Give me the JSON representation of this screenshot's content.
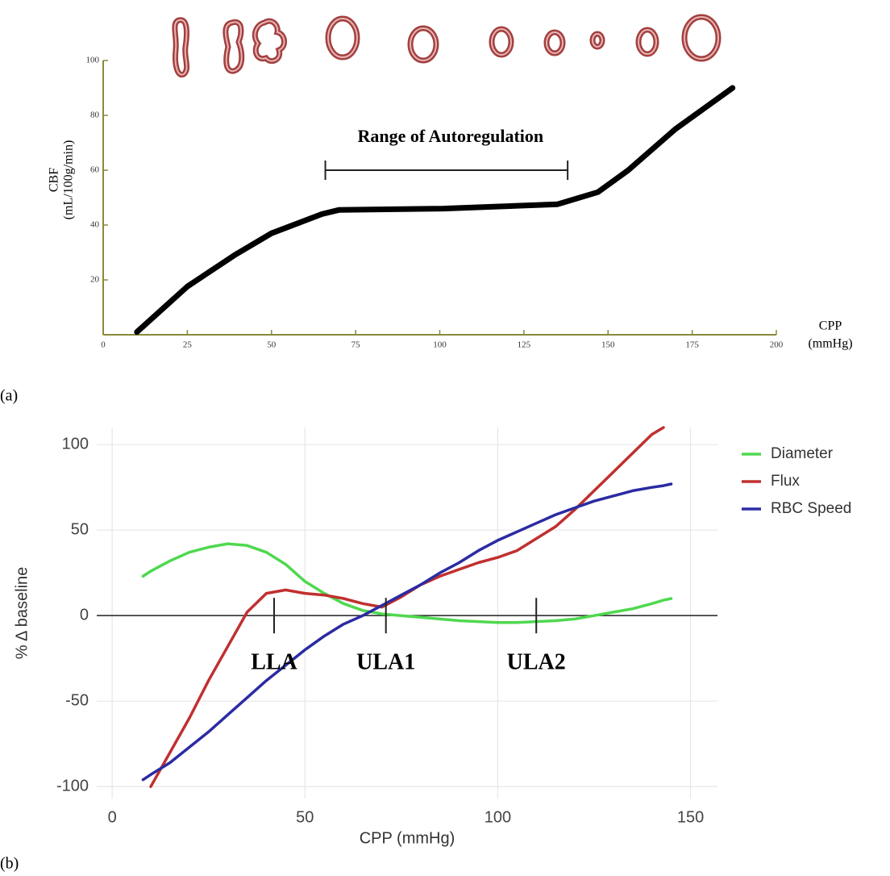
{
  "chart_data": [
    {
      "type": "line",
      "label": "(a)",
      "ylabel": [
        "CBF",
        "(mL/100g/min)"
      ],
      "xlabel": [
        "CPP",
        "(mmHg)"
      ],
      "x": [
        10,
        25,
        39,
        50,
        65,
        70,
        101,
        135,
        147,
        156,
        170,
        187
      ],
      "values": [
        1,
        17.6,
        29,
        37,
        44,
        45.5,
        46,
        47.6,
        52,
        60,
        75,
        90
      ],
      "color": "#000000",
      "xlim": [
        0,
        200
      ],
      "xticks": [
        0,
        25,
        50,
        75,
        100,
        125,
        150,
        175,
        200
      ],
      "ylim": [
        0,
        100
      ],
      "yticks": [
        20,
        40,
        60,
        80,
        100
      ],
      "grid": false,
      "annotations": [
        {
          "text": "Range of Autoregulation",
          "x": [
            66,
            138
          ],
          "y": 60
        }
      ]
    },
    {
      "type": "line",
      "label": "(b)",
      "ylabel": "% Δ baseline",
      "xlabel": "CPP (mmHg)",
      "x": [
        8,
        10,
        15,
        20,
        25,
        30,
        35,
        40,
        45,
        50,
        55,
        60,
        65,
        70,
        75,
        80,
        85,
        90,
        95,
        100,
        105,
        110,
        115,
        120,
        125,
        130,
        135,
        140,
        143,
        145
      ],
      "series": [
        {
          "name": "Diameter",
          "color": "#4fd84f",
          "values": [
            23,
            26,
            32,
            37,
            40,
            42,
            41,
            37,
            30,
            20,
            13,
            7,
            3,
            1,
            0,
            -1,
            -2,
            -3,
            -3.5,
            -4,
            -4,
            -3.5,
            -3,
            -2,
            0,
            2,
            4,
            7,
            9,
            10
          ]
        },
        {
          "name": "Flux",
          "color": "#c0302f",
          "values": [
            null,
            -100,
            -80,
            -60,
            -38,
            -18,
            2,
            13,
            15,
            13,
            12,
            10,
            7,
            5,
            11,
            18,
            23,
            27,
            31,
            34,
            38,
            45,
            52,
            62,
            73,
            84,
            95,
            106,
            110,
            null
          ]
        },
        {
          "name": "RBC Speed",
          "color": "#2b2ba3",
          "values": [
            -96,
            -93,
            -86,
            -77,
            -68,
            -58,
            -48,
            -38,
            -29,
            -20,
            -12,
            -5,
            0,
            6,
            12,
            18,
            25,
            31,
            38,
            44,
            49,
            54,
            59,
            63,
            67,
            70,
            73,
            75,
            76,
            77
          ]
        }
      ],
      "xlim": [
        -4,
        157
      ],
      "xticks": [
        0,
        50,
        100,
        150
      ],
      "ylim": [
        -107,
        110
      ],
      "yticks": [
        -100,
        -50,
        0,
        50,
        100
      ],
      "grid": true,
      "hline": 0,
      "legend": "right",
      "annotations": [
        {
          "text": "LLA",
          "x": 42
        },
        {
          "text": "ULA1",
          "x": 71
        },
        {
          "text": "ULA2",
          "x": 110
        }
      ]
    }
  ]
}
